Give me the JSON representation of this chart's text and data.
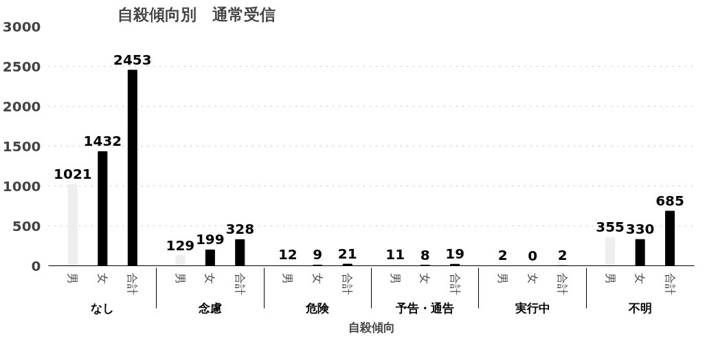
{
  "chart_data": {
    "type": "bar",
    "title": "自殺傾向別　通常受信",
    "xlabel": "自殺傾向",
    "categories": [
      "男",
      "女",
      "合計",
      "男",
      "女",
      "合計",
      "男",
      "女",
      "合計",
      "男",
      "女",
      "合計",
      "男",
      "女",
      "合計",
      "男",
      "女",
      "合計"
    ],
    "annotations": [
      "なし",
      "念慮",
      "危険",
      "予告・通告",
      "実行中",
      "不明"
    ],
    "values": [
      1021,
      1432,
      2453,
      129,
      199,
      328,
      12,
      9,
      21,
      11,
      8,
      19,
      2,
      0,
      2,
      355,
      330,
      685
    ],
    "colors": [
      "#eeeeee",
      "#000000",
      "#000000",
      "#eeeeee",
      "#000000",
      "#000000",
      "#eeeeee",
      "#000000",
      "#000000",
      "#eeeeee",
      "#000000",
      "#000000",
      "#eeeeee",
      "#000000",
      "#000000",
      "#eeeeee",
      "#000000",
      "#000000"
    ],
    "ylim": [
      0,
      3000
    ],
    "yticks": [
      0,
      500,
      1000,
      1500,
      2000,
      2500,
      3000
    ],
    "grid": "y",
    "data_labels": true
  }
}
